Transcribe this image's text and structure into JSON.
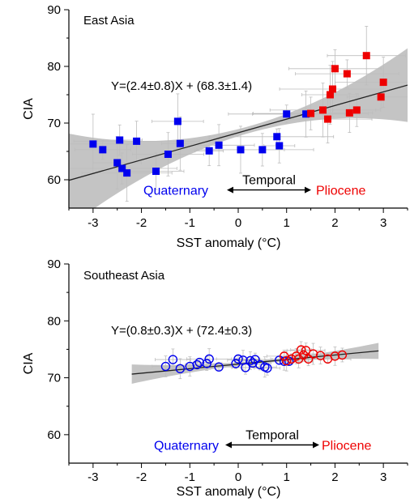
{
  "chart_data": [
    {
      "type": "scatter",
      "region_label": "East Asia",
      "xlabel": "SST anomaly (°C)",
      "ylabel": "CIA",
      "xlim": [
        -3.5,
        3.5
      ],
      "ylim": [
        55,
        90
      ],
      "xticks": [
        -3,
        -2,
        -1,
        0,
        1,
        2,
        3
      ],
      "yticks": [
        60,
        70,
        80,
        90
      ],
      "grid": false,
      "equation": "Y=(2.4±0.8)X + (68.3±1.4)",
      "fit": {
        "slope": 2.4,
        "intercept": 68.3,
        "x_range": [
          -3.5,
          3.5
        ],
        "confidence_band": true
      },
      "annotation": {
        "left": "Quaternary",
        "center": "Temporal",
        "right": "Pliocene",
        "y": 58.2
      },
      "series": [
        {
          "name": "Quaternary",
          "marker": "filled-square",
          "color": "#0000ee",
          "points": [
            [
              -3.0,
              66.3
            ],
            [
              -2.8,
              65.3
            ],
            [
              -2.5,
              63.0
            ],
            [
              -2.45,
              67.0
            ],
            [
              -2.4,
              62.0
            ],
            [
              -2.3,
              61.2
            ],
            [
              -2.1,
              66.8
            ],
            [
              -1.7,
              61.5
            ],
            [
              -1.45,
              64.5
            ],
            [
              -1.25,
              70.3
            ],
            [
              -1.2,
              66.4
            ],
            [
              -0.6,
              65.1
            ],
            [
              -0.4,
              66.1
            ],
            [
              0.05,
              65.3
            ],
            [
              0.5,
              65.3
            ],
            [
              0.8,
              67.6
            ],
            [
              0.85,
              66.0
            ],
            [
              1.0,
              71.6
            ],
            [
              1.4,
              71.6
            ]
          ]
        },
        {
          "name": "Pliocene",
          "marker": "filled-square",
          "color": "#ee0000",
          "points": [
            [
              1.5,
              71.7
            ],
            [
              1.75,
              72.3
            ],
            [
              1.85,
              70.7
            ],
            [
              1.9,
              75.0
            ],
            [
              1.95,
              76.0
            ],
            [
              2.0,
              79.6
            ],
            [
              2.25,
              78.7
            ],
            [
              2.3,
              71.8
            ],
            [
              2.45,
              72.3
            ],
            [
              2.65,
              81.9
            ],
            [
              2.95,
              74.6
            ],
            [
              3.0,
              77.2
            ]
          ]
        }
      ]
    },
    {
      "type": "scatter",
      "region_label": "Southeast Asia",
      "xlabel": "SST anomaly (°C)",
      "ylabel": "CIA",
      "xlim": [
        -3.5,
        3.5
      ],
      "ylim": [
        55,
        90
      ],
      "xticks": [
        -3,
        -2,
        -1,
        0,
        1,
        2,
        3
      ],
      "yticks": [
        60,
        70,
        80,
        90
      ],
      "grid": false,
      "equation": "Y=(0.8±0.3)X + (72.4±0.3)",
      "fit": {
        "slope": 0.8,
        "intercept": 72.4,
        "x_range": [
          -2.2,
          2.9
        ],
        "confidence_band": true
      },
      "annotation": {
        "left": "Quaternary",
        "center": "Temporal",
        "right": "Pliocene",
        "y": 58.2
      },
      "series": [
        {
          "name": "Quaternary",
          "marker": "open-circle",
          "color": "#0000ee",
          "points": [
            [
              -1.5,
              72.0
            ],
            [
              -1.35,
              73.2
            ],
            [
              -1.2,
              71.6
            ],
            [
              -1.0,
              72.0
            ],
            [
              -0.85,
              72.3
            ],
            [
              -0.8,
              72.7
            ],
            [
              -0.65,
              72.5
            ],
            [
              -0.6,
              73.3
            ],
            [
              -0.4,
              71.9
            ],
            [
              -0.05,
              72.5
            ],
            [
              0.0,
              73.3
            ],
            [
              0.1,
              73.1
            ],
            [
              0.15,
              71.8
            ],
            [
              0.25,
              73.0
            ],
            [
              0.3,
              72.6
            ],
            [
              0.35,
              73.2
            ],
            [
              0.45,
              72.3
            ],
            [
              0.55,
              71.9
            ],
            [
              0.6,
              71.7
            ],
            [
              0.85,
              73.1
            ],
            [
              0.95,
              72.9
            ],
            [
              1.05,
              72.9
            ]
          ]
        },
        {
          "name": "Pliocene",
          "marker": "open-circle",
          "color": "#ee0000",
          "points": [
            [
              0.95,
              73.8
            ],
            [
              1.0,
              73.0
            ],
            [
              1.1,
              73.3
            ],
            [
              1.2,
              73.8
            ],
            [
              1.25,
              73.3
            ],
            [
              1.3,
              74.9
            ],
            [
              1.35,
              74.0
            ],
            [
              1.4,
              74.8
            ],
            [
              1.45,
              73.3
            ],
            [
              1.55,
              74.2
            ],
            [
              1.7,
              73.9
            ],
            [
              1.85,
              73.3
            ],
            [
              2.0,
              73.8
            ],
            [
              2.15,
              74.0
            ]
          ]
        }
      ]
    }
  ]
}
